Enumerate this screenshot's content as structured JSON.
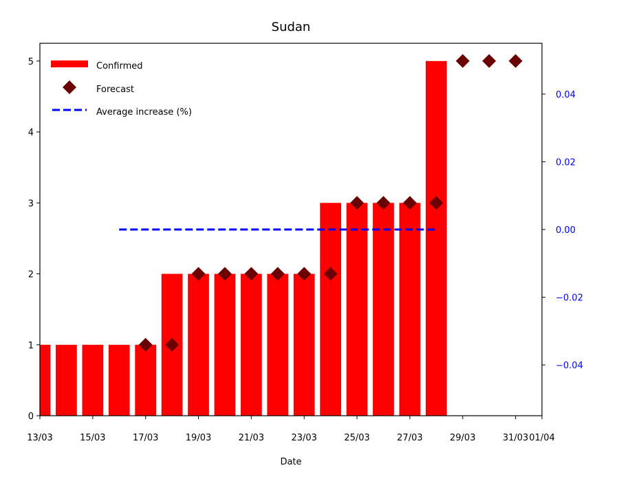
{
  "chart_data": {
    "type": "bar",
    "title": "Sudan",
    "xlabel": "Date",
    "ylabel": "",
    "ylim": [
      0,
      5.25
    ],
    "y_ticks": [
      0,
      1,
      2,
      3,
      4,
      5
    ],
    "x_tick_labels": [
      "13/03",
      "15/03",
      "17/03",
      "19/03",
      "21/03",
      "23/03",
      "25/03",
      "27/03",
      "29/03",
      "31/03",
      "01/04"
    ],
    "x_tick_days": [
      0,
      2,
      4,
      6,
      8,
      10,
      12,
      14,
      16,
      18,
      19
    ],
    "x_range_days": [
      0,
      19
    ],
    "series": [
      {
        "name": "Confirmed",
        "kind": "bar",
        "color": "#ff0000",
        "days": [
          0,
          1,
          2,
          3,
          4,
          5,
          6,
          7,
          8,
          9,
          10,
          11,
          12,
          13,
          14,
          15
        ],
        "values": [
          1,
          1,
          1,
          1,
          1,
          2,
          2,
          2,
          2,
          2,
          2,
          3,
          3,
          3,
          3,
          5
        ]
      },
      {
        "name": "Forecast",
        "kind": "marker",
        "color": "#6b0000",
        "days": [
          4,
          5,
          6,
          7,
          8,
          9,
          10,
          11,
          12,
          13,
          14,
          15,
          16,
          17,
          18
        ],
        "values": [
          1,
          1,
          2,
          2,
          2,
          2,
          2,
          2,
          3,
          3,
          3,
          3,
          5,
          5,
          5
        ]
      },
      {
        "name": "Average increase (%)",
        "kind": "dashed-line",
        "axis": "right",
        "color": "#0000ff",
        "days": [
          3,
          15
        ],
        "values": [
          0,
          0
        ]
      }
    ],
    "y2lim": [
      -0.055,
      0.055
    ],
    "y2_ticks": [
      -0.04,
      -0.02,
      0.0,
      0.02,
      0.04
    ],
    "y2_tick_labels": [
      "−0.04",
      "−0.02",
      "0.00",
      "0.02",
      "0.04"
    ],
    "y2_color": "#0000ff",
    "legend_position": "top-left",
    "grid": false
  }
}
